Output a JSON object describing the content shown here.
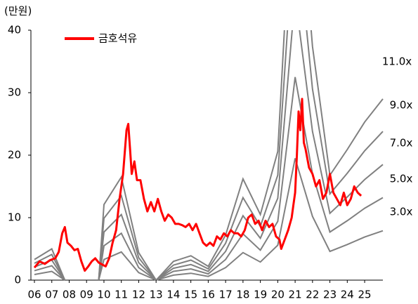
{
  "chart_data": {
    "type": "line",
    "y_unit_label": "(만원)",
    "xlim": [
      2005.8,
      2026.1
    ],
    "xticks": [
      {
        "value": 2006,
        "label": "06"
      },
      {
        "value": 2007,
        "label": "07"
      },
      {
        "value": 2008,
        "label": "08"
      },
      {
        "value": 2009,
        "label": "09"
      },
      {
        "value": 2010,
        "label": "10"
      },
      {
        "value": 2011,
        "label": "11"
      },
      {
        "value": 2012,
        "label": "12"
      },
      {
        "value": 2013,
        "label": "13"
      },
      {
        "value": 2014,
        "label": "14"
      },
      {
        "value": 2015,
        "label": "15"
      },
      {
        "value": 2016,
        "label": "16"
      },
      {
        "value": 2017,
        "label": "17"
      },
      {
        "value": 2018,
        "label": "18"
      },
      {
        "value": 2019,
        "label": "19"
      },
      {
        "value": 2020,
        "label": "20"
      },
      {
        "value": 2021,
        "label": "21"
      },
      {
        "value": 2022,
        "label": "22"
      },
      {
        "value": 2023,
        "label": "23"
      },
      {
        "value": 2024,
        "label": "24"
      },
      {
        "value": 2025,
        "label": "25"
      }
    ],
    "ylim": [
      0,
      40
    ],
    "yticks": [
      0,
      10,
      20,
      30,
      40
    ],
    "grid": false,
    "legend": "top-left",
    "band_x": [
      2006,
      2007,
      2007.75,
      2009.7,
      2010,
      2011,
      2012,
      2013,
      2014,
      2015,
      2016,
      2017,
      2018,
      2019,
      2020,
      2021,
      2022,
      2023,
      2024,
      2025,
      2026.05
    ],
    "bands": [
      {
        "name": "3.0x",
        "color": "#808080",
        "values": [
          0.9,
          1.4,
          0,
          0,
          3.3,
          4.5,
          1.2,
          0,
          0.8,
          1.1,
          0.6,
          2.0,
          4.4,
          2.9,
          5.6,
          19.5,
          10.2,
          4.6,
          5.7,
          6.9,
          7.9
        ]
      },
      {
        "name": "5.0x",
        "color": "#808080",
        "values": [
          1.5,
          2.3,
          0,
          0,
          5.5,
          7.5,
          2.0,
          0,
          1.4,
          1.8,
          1.0,
          3.3,
          7.4,
          4.8,
          9.4,
          32.5,
          17.0,
          7.7,
          9.5,
          11.5,
          13.2
        ]
      },
      {
        "name": "7.0x",
        "color": "#808080",
        "values": [
          2.1,
          3.2,
          0,
          0,
          7.7,
          10.5,
          2.8,
          0,
          1.9,
          2.5,
          1.4,
          4.6,
          10.3,
          6.7,
          13.1,
          45.5,
          23.8,
          10.7,
          13.3,
          16.1,
          18.5
        ]
      },
      {
        "name": "9.0x",
        "color": "#808080",
        "values": [
          2.7,
          4.1,
          0,
          0,
          9.9,
          13.5,
          3.6,
          0,
          2.4,
          3.2,
          1.8,
          5.9,
          13.2,
          8.6,
          16.8,
          58.5,
          30.6,
          13.8,
          17.1,
          20.7,
          23.8
        ]
      },
      {
        "name": "11.0x",
        "color": "#808080",
        "values": [
          3.3,
          5.0,
          0,
          0,
          12.1,
          16.5,
          4.4,
          0,
          3.0,
          3.9,
          2.2,
          7.2,
          16.2,
          10.5,
          20.6,
          71.5,
          37.4,
          16.8,
          20.9,
          25.3,
          29.0
        ]
      }
    ],
    "series": [
      {
        "name": "금호석유",
        "color": "#ff0000",
        "x": [
          2006.0,
          2006.3,
          2006.6,
          2006.9,
          2007.2,
          2007.4,
          2007.6,
          2007.75,
          2007.9,
          2008.1,
          2008.3,
          2008.5,
          2008.7,
          2008.9,
          2009.1,
          2009.3,
          2009.5,
          2009.7,
          2009.9,
          2010.1,
          2010.3,
          2010.5,
          2010.7,
          2010.9,
          2011.1,
          2011.3,
          2011.4,
          2011.5,
          2011.6,
          2011.75,
          2011.9,
          2012.1,
          2012.3,
          2012.5,
          2012.7,
          2012.9,
          2013.1,
          2013.3,
          2013.5,
          2013.7,
          2013.9,
          2014.1,
          2014.3,
          2014.5,
          2014.7,
          2014.9,
          2015.1,
          2015.3,
          2015.5,
          2015.7,
          2015.9,
          2016.1,
          2016.3,
          2016.5,
          2016.7,
          2016.9,
          2017.1,
          2017.3,
          2017.5,
          2017.7,
          2017.9,
          2018.1,
          2018.3,
          2018.5,
          2018.7,
          2018.9,
          2019.1,
          2019.3,
          2019.5,
          2019.7,
          2019.9,
          2020.1,
          2020.2,
          2020.4,
          2020.6,
          2020.8,
          2020.9,
          2021.0,
          2021.1,
          2021.2,
          2021.3,
          2021.4,
          2021.5,
          2021.6,
          2021.8,
          2022.0,
          2022.2,
          2022.4,
          2022.6,
          2022.8,
          2023.0,
          2023.2,
          2023.4,
          2023.6,
          2023.8,
          2024.0,
          2024.2,
          2024.4,
          2024.6,
          2024.8
        ],
        "values": [
          2.0,
          3.0,
          2.6,
          3.2,
          3.5,
          4.5,
          7.5,
          8.5,
          6.0,
          5.5,
          4.8,
          5.0,
          3.0,
          1.5,
          2.2,
          3.0,
          3.5,
          2.8,
          2.5,
          2.2,
          3.5,
          6,
          8,
          13,
          17,
          24,
          25,
          21,
          17,
          19,
          16,
          16,
          13,
          11,
          12.5,
          11,
          13,
          11,
          9.5,
          10.5,
          10,
          9,
          9,
          8.8,
          8.5,
          9,
          8,
          9,
          7.5,
          6,
          5.5,
          6,
          5.5,
          7,
          6.5,
          7.5,
          7,
          8,
          7.5,
          7.5,
          7,
          8,
          10,
          10.5,
          9,
          9.5,
          8,
          9.5,
          8.5,
          9,
          7,
          6.5,
          5,
          6.5,
          8,
          10,
          12,
          14,
          20,
          27,
          24,
          29,
          22,
          21,
          18,
          17,
          15,
          16,
          13,
          14,
          17,
          14,
          13,
          12,
          14,
          12,
          13,
          15,
          14,
          13.5
        ]
      }
    ]
  }
}
